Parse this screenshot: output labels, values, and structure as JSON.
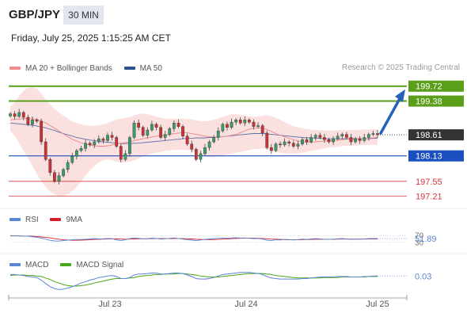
{
  "header": {
    "pair": "GBP/JPY",
    "timeframe": "30 MIN",
    "datetime": "Friday, July 25, 2025 1:15:25 AM CET"
  },
  "legend": [
    {
      "label": "MA 20 + Bollinger Bands",
      "color": "#f28c8c"
    },
    {
      "label": "MA 50",
      "color": "#2e4f8f"
    }
  ],
  "credit": "Research © 2025 Trading Central",
  "colors": {
    "resistance": "#5a9e1a",
    "pivot": "#1a4fbf",
    "support": "#d9383a",
    "arrow": "#2461b8",
    "bullish": "#3a9d6a",
    "bearish": "#cc3333",
    "bollinger_fill": "#fbe0e0",
    "last_price_bg": "#333333"
  },
  "chart_data": [
    {
      "type": "candlestick",
      "y_range": [
        196.95,
        199.95
      ],
      "x_ticks": [
        "Jul 23",
        "Jul 24",
        "Jul 25"
      ],
      "last_price": {
        "label": "198.61",
        "value": 198.61
      },
      "levels": [
        {
          "label": "199.72",
          "value": 199.72,
          "kind": "resistance"
        },
        {
          "label": "199.38",
          "value": 199.38,
          "kind": "resistance"
        },
        {
          "label": "198.13",
          "value": 198.13,
          "kind": "pivot"
        },
        {
          "label": "197.55",
          "value": 197.55,
          "kind": "support"
        },
        {
          "label": "197.21",
          "value": 197.21,
          "kind": "support"
        }
      ],
      "forecast_arrow": {
        "from": 198.61,
        "to": 199.72
      },
      "close": [
        199.09,
        199.03,
        199.12,
        199.01,
        198.85,
        198.95,
        198.92,
        198.45,
        198.05,
        197.75,
        197.55,
        197.68,
        197.82,
        197.98,
        198.12,
        198.25,
        198.3,
        198.42,
        198.38,
        198.45,
        198.52,
        198.48,
        198.6,
        198.55,
        198.35,
        198.05,
        198.18,
        198.55,
        198.88,
        198.78,
        198.6,
        198.72,
        198.85,
        198.78,
        198.55,
        198.62,
        198.75,
        198.88,
        198.8,
        198.58,
        198.4,
        198.28,
        198.05,
        198.18,
        198.32,
        198.45,
        198.55,
        198.7,
        198.85,
        198.78,
        198.9,
        198.95,
        198.88,
        198.95,
        198.9,
        198.8,
        198.82,
        198.65,
        198.32,
        198.25,
        198.4,
        198.38,
        198.45,
        198.42,
        198.35,
        198.4,
        198.5,
        198.45,
        198.55,
        198.6,
        198.55,
        198.5,
        198.45,
        198.52,
        198.58,
        198.62,
        198.55,
        198.45,
        198.52,
        198.48,
        198.55,
        198.62,
        198.64,
        198.61
      ],
      "ma20": [
        198.95,
        198.96,
        198.97,
        198.98,
        198.98,
        198.98,
        198.96,
        198.93,
        198.88,
        198.82,
        198.76,
        198.7,
        198.63,
        198.57,
        198.51,
        198.47,
        198.43,
        198.4,
        198.38,
        198.36,
        198.35,
        198.35,
        198.36,
        198.38,
        198.4,
        198.42,
        198.43,
        198.45,
        198.48,
        198.5,
        198.52,
        198.54,
        198.56,
        198.58,
        198.59,
        198.6,
        198.62,
        198.64,
        198.65,
        198.66,
        198.66,
        198.64,
        198.62,
        198.6,
        198.58,
        198.57,
        198.56,
        198.56,
        198.57,
        198.58,
        198.6,
        198.62,
        198.66,
        198.7,
        198.74,
        198.76,
        198.77,
        198.76,
        198.73,
        198.69,
        198.64,
        198.6,
        198.57,
        198.53,
        198.5,
        198.47,
        198.45,
        198.44,
        198.44,
        198.45,
        198.46,
        198.47,
        198.47,
        198.48,
        198.49,
        198.5,
        198.51,
        198.51,
        198.51,
        198.52,
        198.52,
        198.53,
        198.54,
        198.55
      ],
      "ma50": [
        198.88,
        198.87,
        198.86,
        198.85,
        198.84,
        198.83,
        198.81,
        198.79,
        198.77,
        198.74,
        198.71,
        198.67,
        198.64,
        198.61,
        198.58,
        198.55,
        198.53,
        198.51,
        198.49,
        198.48,
        198.46,
        198.45,
        198.44,
        198.43,
        198.42,
        198.41,
        198.41,
        198.41,
        198.42,
        198.42,
        198.43,
        198.44,
        198.45,
        198.46,
        198.47,
        198.48,
        198.49,
        198.5,
        198.51,
        198.52,
        198.53,
        198.53,
        198.54,
        198.54,
        198.54,
        198.55,
        198.55,
        198.56,
        198.57,
        198.58,
        198.59,
        198.6,
        198.61,
        198.62,
        198.63,
        198.64,
        198.64,
        198.64,
        198.63,
        198.62,
        198.61,
        198.6,
        198.59,
        198.58,
        198.57,
        198.56,
        198.55,
        198.54,
        198.54,
        198.53,
        198.53,
        198.52,
        198.52,
        198.52,
        198.52,
        198.52,
        198.52,
        198.52,
        198.52,
        198.52,
        198.52,
        198.52,
        198.53,
        198.53
      ],
      "bb_upper": [
        199.25,
        199.35,
        199.5,
        199.62,
        199.68,
        199.7,
        199.66,
        199.55,
        199.42,
        199.3,
        199.2,
        199.12,
        199.05,
        198.98,
        198.92,
        198.88,
        198.85,
        198.83,
        198.82,
        198.82,
        198.83,
        198.85,
        198.88,
        198.92,
        198.96,
        198.98,
        199.0,
        199.02,
        199.05,
        199.08,
        199.1,
        199.08,
        199.05,
        199.02,
        199.0,
        198.98,
        198.98,
        198.98,
        198.98,
        198.98,
        198.98,
        198.96,
        198.94,
        198.92,
        198.92,
        198.93,
        198.95,
        198.98,
        199.02,
        199.05,
        199.08,
        199.08,
        199.07,
        199.05,
        199.03,
        199.02,
        199.03,
        199.05,
        199.06,
        199.04,
        199.0,
        198.95,
        198.9,
        198.85,
        198.81,
        198.78,
        198.76,
        198.74,
        198.73,
        198.72,
        198.72,
        198.71,
        198.71,
        198.71,
        198.72,
        198.72,
        198.72,
        198.72,
        198.72,
        198.73,
        198.73,
        198.73,
        198.74,
        198.74
      ],
      "bb_lower": [
        198.7,
        198.58,
        198.42,
        198.25,
        198.08,
        197.9,
        197.72,
        197.55,
        197.42,
        197.32,
        197.25,
        197.22,
        197.22,
        197.25,
        197.32,
        197.42,
        197.55,
        197.68,
        197.8,
        197.9,
        197.98,
        198.03,
        198.05,
        198.03,
        198.0,
        197.98,
        197.98,
        198.0,
        198.03,
        198.07,
        198.12,
        198.15,
        198.18,
        198.2,
        198.22,
        198.24,
        198.25,
        198.26,
        198.27,
        198.27,
        198.26,
        198.24,
        198.2,
        198.15,
        198.12,
        198.1,
        198.1,
        198.12,
        198.14,
        198.16,
        198.18,
        198.2,
        198.22,
        198.24,
        198.26,
        198.28,
        198.29,
        198.3,
        198.28,
        198.25,
        198.22,
        198.2,
        198.19,
        198.18,
        198.18,
        198.19,
        198.2,
        198.22,
        198.24,
        198.26,
        198.28,
        198.3,
        198.32,
        198.33,
        198.34,
        198.35,
        198.36,
        198.36,
        198.37,
        198.37,
        198.38,
        198.38,
        198.38,
        198.38
      ]
    },
    {
      "type": "line",
      "series": [
        {
          "name": "RSI",
          "color": "#5b86d6"
        },
        {
          "name": "9MA",
          "color": "#d21f2a"
        }
      ],
      "y_labels": [
        "70",
        "30"
      ],
      "last_value": "51.89",
      "rsi": [
        70,
        69,
        68,
        67,
        66,
        63,
        60,
        55,
        48,
        42,
        38,
        37,
        40,
        43,
        45,
        47,
        46,
        48,
        50,
        52,
        50,
        51,
        53,
        52,
        44,
        40,
        45,
        52,
        56,
        54,
        50,
        52,
        55,
        53,
        49,
        51,
        54,
        56,
        53,
        49,
        45,
        43,
        40,
        44,
        47,
        50,
        52,
        54,
        56,
        54,
        56,
        57,
        55,
        56,
        54,
        52,
        53,
        49,
        42,
        40,
        45,
        44,
        47,
        46,
        44,
        46,
        49,
        47,
        50,
        52,
        50,
        48,
        47,
        49,
        51,
        52,
        50,
        47,
        49,
        48,
        50,
        52,
        53,
        51.89
      ],
      "rsi_ma": [
        68,
        68,
        68,
        67,
        67,
        66,
        65,
        62,
        59,
        56,
        52,
        48,
        45,
        43,
        42,
        42,
        43,
        44,
        45,
        47,
        48,
        49,
        50,
        51,
        50,
        49,
        48,
        49,
        50,
        51,
        51,
        51,
        52,
        53,
        52,
        52,
        52,
        53,
        53,
        52,
        51,
        50,
        48,
        47,
        46,
        46,
        46,
        47,
        49,
        50,
        52,
        53,
        54,
        55,
        55,
        55,
        54,
        53,
        51,
        49,
        48,
        47,
        46,
        45,
        45,
        45,
        46,
        46,
        47,
        48,
        48,
        48,
        48,
        48,
        49,
        49,
        49,
        49,
        49,
        49,
        49,
        50,
        50,
        50
      ]
    },
    {
      "type": "line",
      "series": [
        {
          "name": "MACD",
          "color": "#5b86d6"
        },
        {
          "name": "MACD Signal",
          "color": "#4aa61a"
        }
      ],
      "last_value": "0.03",
      "macd": [
        0.06,
        0.06,
        0.05,
        0.04,
        0.02,
        0.01,
        0.0,
        -0.05,
        -0.12,
        -0.18,
        -0.22,
        -0.24,
        -0.23,
        -0.21,
        -0.18,
        -0.15,
        -0.11,
        -0.08,
        -0.05,
        -0.03,
        0.0,
        0.01,
        0.03,
        0.04,
        0.02,
        -0.02,
        -0.02,
        0.0,
        0.05,
        0.07,
        0.07,
        0.08,
        0.09,
        0.09,
        0.07,
        0.07,
        0.08,
        0.09,
        0.09,
        0.08,
        0.05,
        0.02,
        -0.02,
        -0.03,
        -0.03,
        -0.02,
        0.0,
        0.03,
        0.06,
        0.07,
        0.08,
        0.09,
        0.1,
        0.1,
        0.1,
        0.09,
        0.08,
        0.06,
        0.02,
        -0.01,
        -0.02,
        -0.03,
        -0.03,
        -0.03,
        -0.03,
        -0.03,
        -0.02,
        -0.02,
        -0.01,
        0.0,
        0.01,
        0.01,
        0.01,
        0.01,
        0.02,
        0.02,
        0.02,
        0.01,
        0.01,
        0.01,
        0.02,
        0.02,
        0.03,
        0.03
      ],
      "signal": [
        0.04,
        0.05,
        0.05,
        0.05,
        0.04,
        0.04,
        0.03,
        0.02,
        -0.01,
        -0.04,
        -0.08,
        -0.11,
        -0.14,
        -0.16,
        -0.17,
        -0.17,
        -0.16,
        -0.15,
        -0.13,
        -0.11,
        -0.09,
        -0.07,
        -0.05,
        -0.03,
        -0.02,
        -0.02,
        -0.02,
        -0.01,
        0.0,
        0.02,
        0.03,
        0.04,
        0.05,
        0.06,
        0.06,
        0.07,
        0.07,
        0.07,
        0.08,
        0.08,
        0.07,
        0.06,
        0.05,
        0.03,
        0.02,
        0.01,
        0.01,
        0.01,
        0.02,
        0.03,
        0.04,
        0.05,
        0.06,
        0.07,
        0.08,
        0.08,
        0.08,
        0.08,
        0.07,
        0.06,
        0.04,
        0.03,
        0.02,
        0.01,
        0.0,
        -0.01,
        -0.01,
        -0.01,
        -0.01,
        -0.01,
        -0.01,
        0.0,
        0.0,
        0.0,
        0.0,
        0.01,
        0.01,
        0.01,
        0.01,
        0.01,
        0.01,
        0.02,
        0.02,
        0.02
      ]
    }
  ]
}
